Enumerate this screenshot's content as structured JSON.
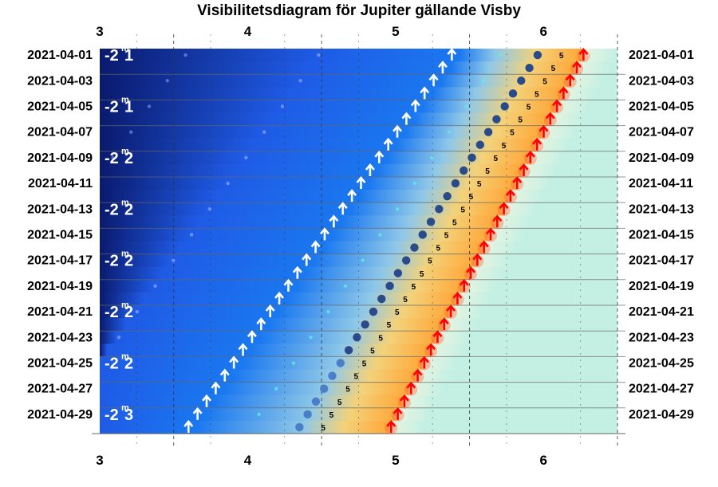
{
  "chart_data": {
    "type": "visibility-diagram",
    "title": "Visibilitetsdiagram för Jupiter gällande Visby",
    "x_ticks": [
      "3",
      "4",
      "5",
      "6"
    ],
    "xlim": [
      3,
      6.5
    ],
    "dates": [
      "2021-04-01",
      "2021-04-03",
      "2021-04-05",
      "2021-04-07",
      "2021-04-09",
      "2021-04-11",
      "2021-04-13",
      "2021-04-15",
      "2021-04-17",
      "2021-04-19",
      "2021-04-21",
      "2021-04-23",
      "2021-04-25",
      "2021-04-27",
      "2021-04-29"
    ],
    "day_range": [
      1,
      30
    ],
    "magnitude_labels": [
      {
        "day": 1,
        "text": "-2.1"
      },
      {
        "day": 5,
        "text": "-2.1"
      },
      {
        "day": 9,
        "text": "-2.2"
      },
      {
        "day": 13,
        "text": "-2.2"
      },
      {
        "day": 17,
        "text": "-2.2"
      },
      {
        "day": 21,
        "text": "-2.2"
      },
      {
        "day": 25,
        "text": "-2.2"
      },
      {
        "day": 29,
        "text": "-2.3"
      }
    ],
    "jupiter_rise_hour": {
      "start": 5.38,
      "end": 3.6
    },
    "sunrise_hour": {
      "start": 6.27,
      "end": 4.97
    },
    "jupiter_position_hour": {
      "start": 5.96,
      "end": 4.35
    },
    "altitude_label": "5",
    "colors": {
      "deep_night": "#0a1a6e",
      "night": "#1f5be6",
      "twilight": "#8fc8e8",
      "dawn": "#f3d27a",
      "sunrise_glow": "#ffa83a",
      "day": "#c4f0e4",
      "rise_arrow": "#ffffff",
      "sun_arrow": "#ff0000",
      "planet": "#2a4a8a"
    }
  }
}
